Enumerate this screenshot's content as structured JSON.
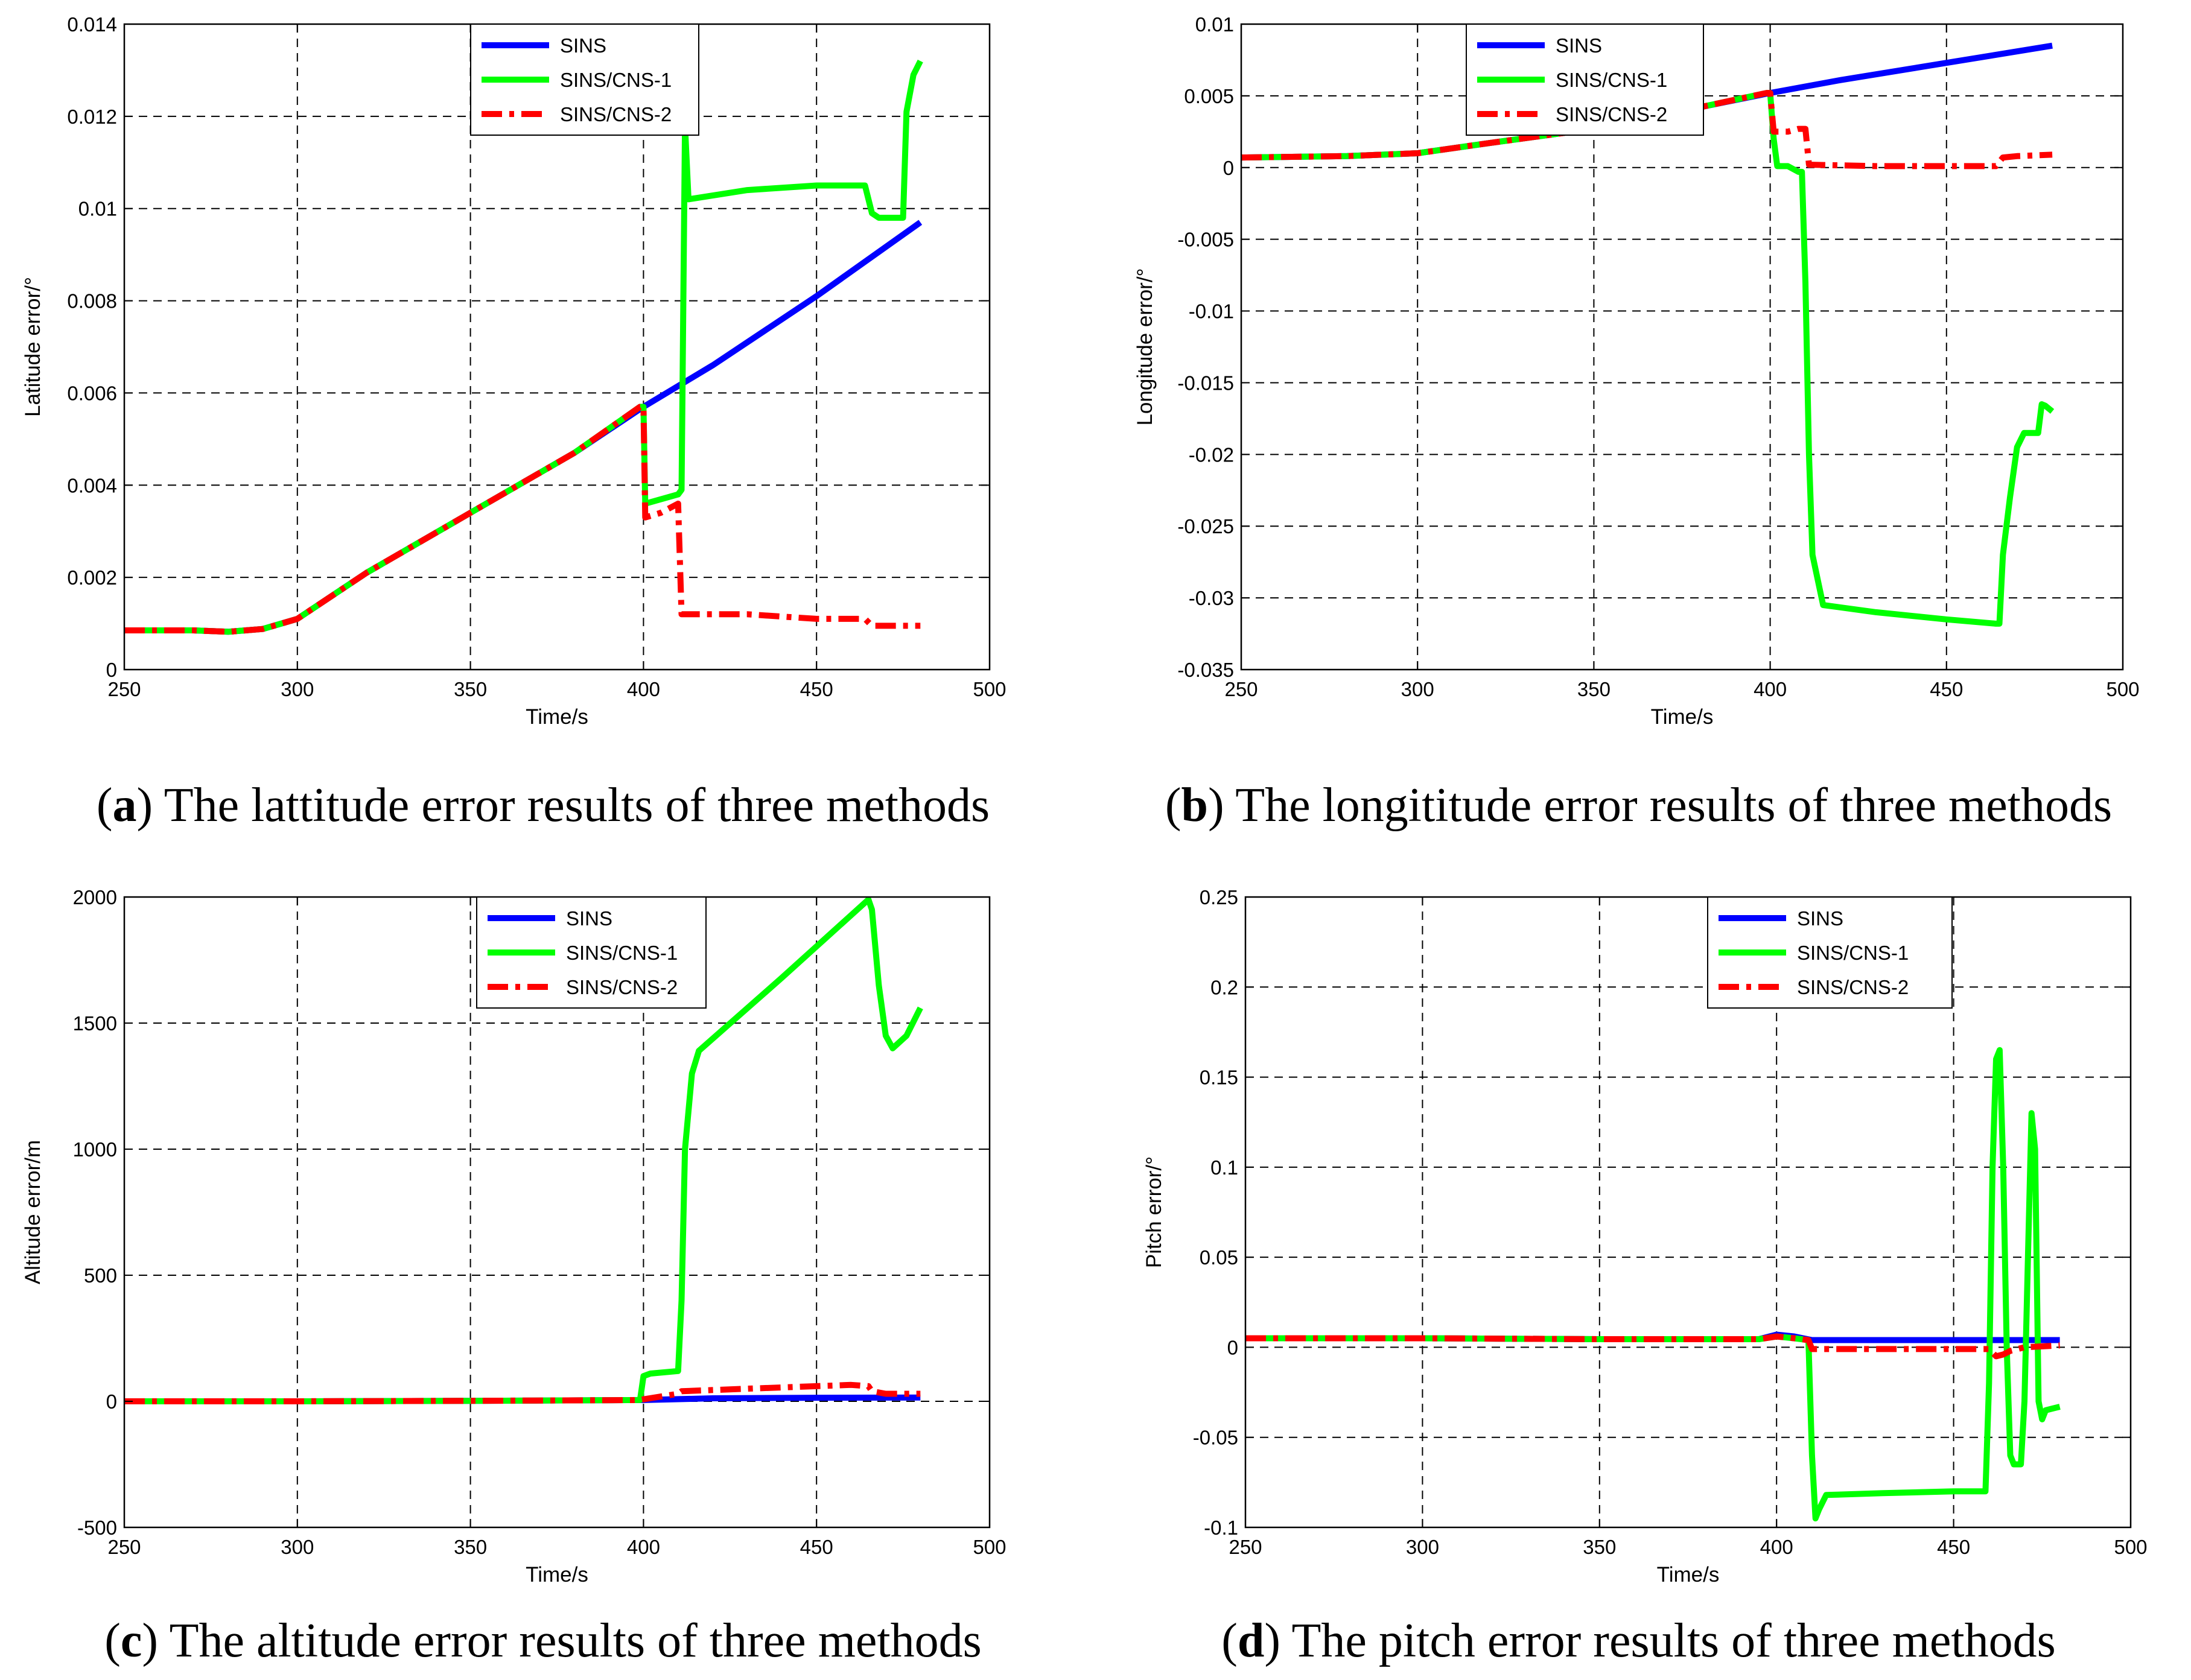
{
  "colors": {
    "sins": "#0000ff",
    "cns1": "#00ff00",
    "cns2": "#ff0000",
    "grid": "#000000",
    "axis": "#000000"
  },
  "chart_data": [
    {
      "type": "line",
      "panel_id": "a",
      "caption_letter": "a",
      "caption_text": " The lattitude error results of three methods",
      "xlabel": "Time/s",
      "ylabel": "Latitude error/°",
      "xlim": [
        250,
        500
      ],
      "ylim": [
        0,
        0.014
      ],
      "xticks": [
        250,
        300,
        350,
        400,
        450,
        500
      ],
      "xtick_labels": [
        "250",
        "300",
        "350",
        "400",
        "450",
        "500"
      ],
      "yticks": [
        0,
        0.002,
        0.004,
        0.006,
        0.008,
        0.01,
        0.012,
        0.014
      ],
      "ytick_labels": [
        "0",
        "0.002",
        "0.004",
        "0.006",
        "0.008",
        "0.01",
        "0.012",
        "0.014"
      ],
      "legend": {
        "position": "top-center",
        "entries": [
          "SINS",
          "SINS/CNS-1",
          "SINS/CNS-2"
        ]
      },
      "series": [
        {
          "name": "SINS",
          "style": "solid",
          "color_key": "sins",
          "x": [
            250,
            270,
            280,
            290,
            300,
            320,
            350,
            380,
            400,
            420,
            450,
            480
          ],
          "y": [
            0.00085,
            0.00085,
            0.00082,
            0.00088,
            0.0011,
            0.0021,
            0.0034,
            0.0047,
            0.0057,
            0.0066,
            0.0081,
            0.0097
          ]
        },
        {
          "name": "SINS/CNS-1",
          "style": "solid",
          "color_key": "cns1",
          "x": [
            250,
            270,
            280,
            290,
            300,
            320,
            350,
            380,
            399,
            400,
            400.5,
            410,
            411,
            412,
            413,
            430,
            450,
            464,
            466,
            468,
            473,
            475,
            476,
            478,
            480
          ],
          "y": [
            0.00085,
            0.00085,
            0.00082,
            0.00088,
            0.0011,
            0.0021,
            0.0034,
            0.0047,
            0.0057,
            0.0057,
            0.0036,
            0.0038,
            0.0039,
            0.0118,
            0.0102,
            0.0104,
            0.0105,
            0.0105,
            0.0099,
            0.0098,
            0.0098,
            0.0098,
            0.0121,
            0.0129,
            0.0132
          ]
        },
        {
          "name": "SINS/CNS-2",
          "style": "dashdot",
          "color_key": "cns2",
          "x": [
            250,
            270,
            280,
            290,
            300,
            320,
            350,
            380,
            399,
            400,
            400.5,
            405,
            410,
            411,
            412,
            430,
            450,
            464,
            466,
            470,
            480
          ],
          "y": [
            0.00085,
            0.00085,
            0.00082,
            0.00088,
            0.0011,
            0.0021,
            0.0034,
            0.0047,
            0.0057,
            0.0057,
            0.0033,
            0.0034,
            0.0036,
            0.0012,
            0.0012,
            0.0012,
            0.0011,
            0.0011,
            0.00095,
            0.00095,
            0.00095
          ]
        }
      ]
    },
    {
      "type": "line",
      "panel_id": "b",
      "caption_letter": "b",
      "caption_text": " The longititude error results of three methods",
      "xlabel": "Time/s",
      "ylabel": "Longitude error/°",
      "xlim": [
        250,
        500
      ],
      "ylim": [
        -0.035,
        0.01
      ],
      "xticks": [
        250,
        300,
        350,
        400,
        450,
        500
      ],
      "xtick_labels": [
        "250",
        "300",
        "350",
        "400",
        "450",
        "500"
      ],
      "yticks": [
        -0.035,
        -0.03,
        -0.025,
        -0.02,
        -0.015,
        -0.01,
        -0.005,
        0,
        0.005,
        0.01
      ],
      "ytick_labels": [
        "-0.035",
        "-0.03",
        "-0.025",
        "-0.02",
        "-0.015",
        "-0.01",
        "-0.005",
        "0",
        "0.005",
        "0.01"
      ],
      "legend": {
        "position": "top-center",
        "entries": [
          "SINS",
          "SINS/CNS-1",
          "SINS/CNS-2"
        ]
      },
      "series": [
        {
          "name": "SINS",
          "style": "solid",
          "color_key": "sins",
          "x": [
            250,
            280,
            300,
            320,
            350,
            380,
            400,
            420,
            450,
            480
          ],
          "y": [
            0.0007,
            0.0008,
            0.001,
            0.0017,
            0.0027,
            0.0042,
            0.0052,
            0.0061,
            0.0073,
            0.0085
          ]
        },
        {
          "name": "SINS/CNS-1",
          "style": "solid",
          "color_key": "cns1",
          "x": [
            250,
            280,
            300,
            320,
            350,
            380,
            399,
            400,
            401,
            402,
            405,
            408,
            409,
            410,
            411,
            412,
            415,
            430,
            450,
            464,
            465,
            466,
            468,
            470,
            472,
            476,
            477,
            478,
            480
          ],
          "y": [
            0.0007,
            0.0008,
            0.001,
            0.0017,
            0.0027,
            0.0042,
            0.0052,
            0.0052,
            0.002,
            0.0001,
            0.0001,
            -0.0003,
            -0.0003,
            -0.008,
            -0.02,
            -0.027,
            -0.0305,
            -0.031,
            -0.0315,
            -0.0318,
            -0.0318,
            -0.027,
            -0.023,
            -0.0195,
            -0.0185,
            -0.0185,
            -0.0165,
            -0.0166,
            -0.017
          ]
        },
        {
          "name": "SINS/CNS-2",
          "style": "dashdot",
          "color_key": "cns2",
          "x": [
            250,
            280,
            300,
            320,
            350,
            380,
            399,
            400,
            401,
            405,
            408,
            410,
            411,
            430,
            450,
            464,
            466,
            470,
            480
          ],
          "y": [
            0.0007,
            0.0008,
            0.001,
            0.0017,
            0.0027,
            0.0042,
            0.0052,
            0.0052,
            0.0025,
            0.0025,
            0.0027,
            0.0027,
            0.0002,
            0.0001,
            0.0001,
            0.0001,
            0.0007,
            0.0008,
            0.0009
          ]
        }
      ]
    },
    {
      "type": "line",
      "panel_id": "c",
      "caption_letter": "c",
      "caption_text": " The altitude error results of three methods",
      "xlabel": "Time/s",
      "ylabel": "Altitude error/m",
      "xlim": [
        250,
        500
      ],
      "ylim": [
        -500,
        2000
      ],
      "xticks": [
        250,
        300,
        350,
        400,
        450,
        500
      ],
      "xtick_labels": [
        "250",
        "300",
        "350",
        "400",
        "450",
        "500"
      ],
      "yticks": [
        -500,
        0,
        500,
        1000,
        1500,
        2000
      ],
      "ytick_labels": [
        "-500",
        "0",
        "500",
        "1000",
        "1500",
        "2000"
      ],
      "legend": {
        "position": "top-center",
        "entries": [
          "SINS",
          "SINS/CNS-1",
          "SINS/CNS-2"
        ]
      },
      "series": [
        {
          "name": "SINS",
          "style": "solid",
          "color_key": "sins",
          "x": [
            250,
            300,
            350,
            400,
            420,
            450,
            480
          ],
          "y": [
            0,
            0,
            2,
            5,
            12,
            14,
            15
          ]
        },
        {
          "name": "SINS/CNS-1",
          "style": "solid",
          "color_key": "cns1",
          "x": [
            250,
            300,
            350,
            399,
            400,
            402,
            410,
            411,
            412,
            414,
            416,
            440,
            465,
            466,
            468,
            470,
            472,
            476,
            480
          ],
          "y": [
            0,
            0,
            2,
            5,
            100,
            110,
            120,
            400,
            1000,
            1300,
            1390,
            1680,
            1990,
            1950,
            1650,
            1450,
            1400,
            1450,
            1560
          ]
        },
        {
          "name": "SINS/CNS-2",
          "style": "dashdot",
          "color_key": "cns2",
          "x": [
            250,
            300,
            350,
            399,
            400,
            410,
            411,
            430,
            450,
            460,
            465,
            466,
            470,
            480
          ],
          "y": [
            0,
            0,
            2,
            5,
            8,
            30,
            40,
            50,
            60,
            65,
            60,
            40,
            30,
            30
          ]
        }
      ]
    },
    {
      "type": "line",
      "panel_id": "d",
      "caption_letter": "d",
      "caption_text": " The pitch error results of three methods",
      "xlabel": "Time/s",
      "ylabel": "Pitch error/°",
      "xlim": [
        250,
        500
      ],
      "ylim": [
        -0.1,
        0.25
      ],
      "xticks": [
        250,
        300,
        350,
        400,
        450,
        500
      ],
      "xtick_labels": [
        "250",
        "300",
        "350",
        "400",
        "450",
        "500"
      ],
      "yticks": [
        -0.1,
        -0.05,
        0,
        0.05,
        0.1,
        0.15,
        0.2,
        0.25
      ],
      "ytick_labels": [
        "-0.1",
        "-0.05",
        "0",
        "0.05",
        "0.1",
        "0.15",
        "0.2",
        "0.25"
      ],
      "legend": {
        "position": "top-center",
        "entries": [
          "SINS",
          "SINS/CNS-1",
          "SINS/CNS-2"
        ]
      },
      "series": [
        {
          "name": "SINS",
          "style": "solid",
          "color_key": "sins",
          "x": [
            250,
            300,
            350,
            395,
            400,
            405,
            410,
            430,
            450,
            470,
            480
          ],
          "y": [
            0.005,
            0.005,
            0.0045,
            0.0045,
            0.007,
            0.006,
            0.004,
            0.004,
            0.004,
            0.004,
            0.004
          ]
        },
        {
          "name": "SINS/CNS-1",
          "style": "solid",
          "color_key": "cns1",
          "x": [
            250,
            300,
            350,
            395,
            400,
            405,
            409,
            410,
            411,
            412,
            414,
            430,
            450,
            459,
            460,
            461,
            462,
            463,
            464,
            465,
            466,
            467,
            469,
            470,
            471,
            472,
            473,
            474,
            475,
            476,
            478,
            480
          ],
          "y": [
            0.005,
            0.005,
            0.0045,
            0.0045,
            0.006,
            0.005,
            0.004,
            -0.06,
            -0.095,
            -0.09,
            -0.082,
            -0.081,
            -0.08,
            -0.08,
            -0.02,
            0.1,
            0.16,
            0.165,
            0.1,
            0.0,
            -0.06,
            -0.065,
            -0.065,
            -0.03,
            0.05,
            0.13,
            0.11,
            -0.03,
            -0.04,
            -0.035,
            -0.034,
            -0.033
          ]
        },
        {
          "name": "SINS/CNS-2",
          "style": "dashdot",
          "color_key": "cns2",
          "x": [
            250,
            300,
            350,
            395,
            400,
            405,
            409,
            410,
            430,
            450,
            460,
            462,
            464,
            466,
            470,
            480
          ],
          "y": [
            0.005,
            0.005,
            0.0045,
            0.0045,
            0.006,
            0.005,
            0.004,
            -0.001,
            -0.001,
            -0.001,
            -0.001,
            -0.005,
            -0.004,
            -0.002,
            0.0,
            0.001
          ]
        }
      ]
    }
  ]
}
